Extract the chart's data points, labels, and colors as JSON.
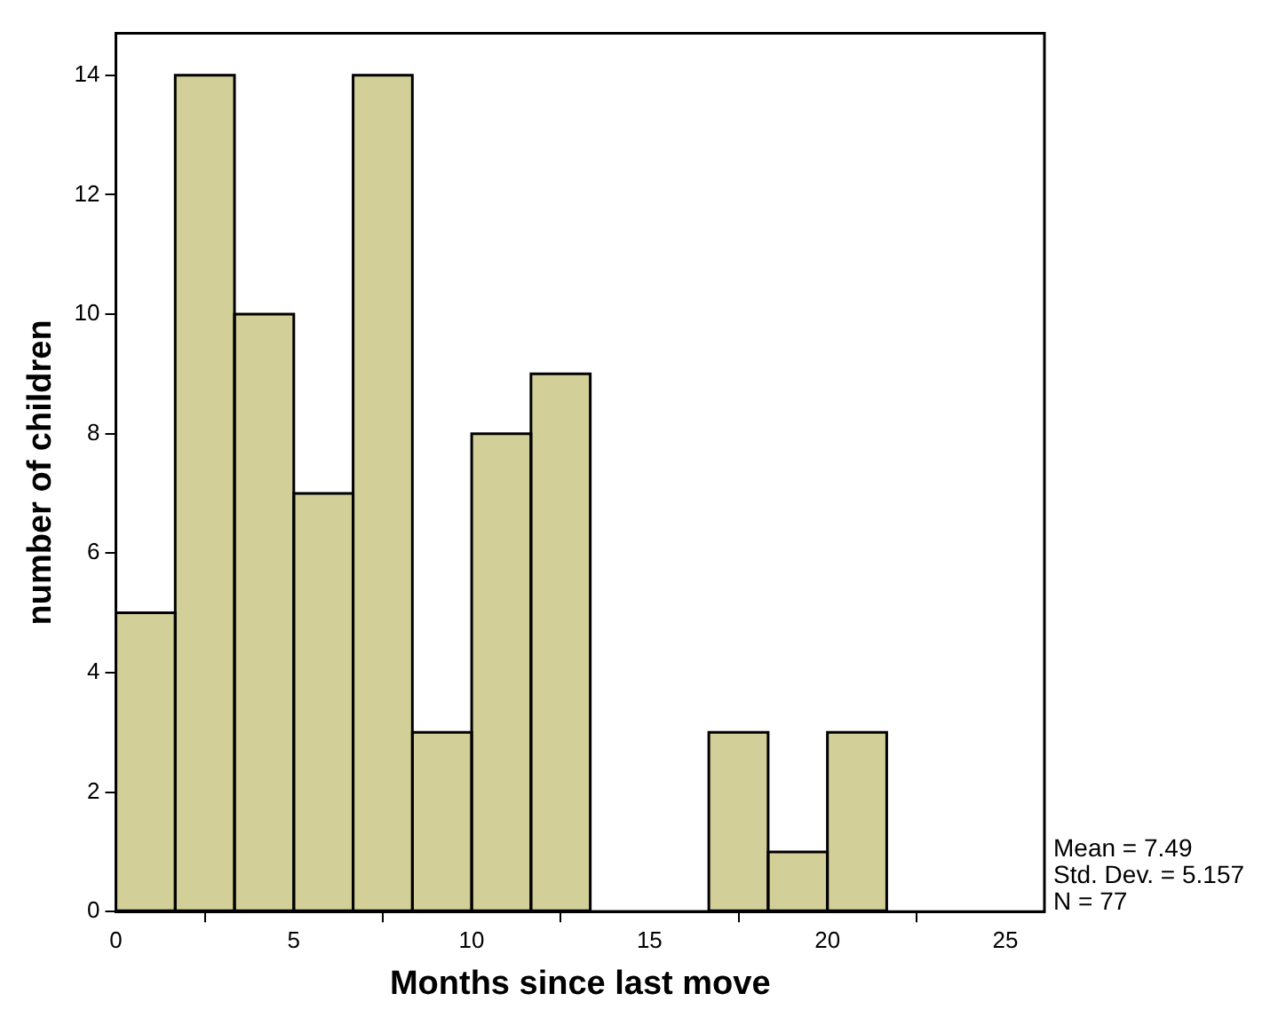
{
  "chart_data": {
    "type": "histogram",
    "xlabel": "Months since last move",
    "ylabel": "number of children",
    "bins": [
      0,
      1.667,
      3.333,
      5,
      6.667,
      8.333,
      10,
      11.667,
      13.333,
      15,
      16.667,
      18.333,
      20,
      21.667
    ],
    "values": [
      5,
      14,
      10,
      7,
      14,
      3,
      8,
      9,
      0,
      0,
      3,
      1,
      3
    ],
    "color": "#d3cf98",
    "xlim": [
      0,
      26.1
    ],
    "xticks": [
      0,
      5,
      10,
      15,
      20,
      25
    ],
    "ylim": [
      0,
      14.7
    ],
    "yticks": [
      0,
      2,
      4,
      6,
      8,
      10,
      12,
      14
    ],
    "grid": false,
    "annotations": [
      "Mean = 7.49",
      "Std. Dev. = 5.157",
      "N = 77"
    ]
  }
}
